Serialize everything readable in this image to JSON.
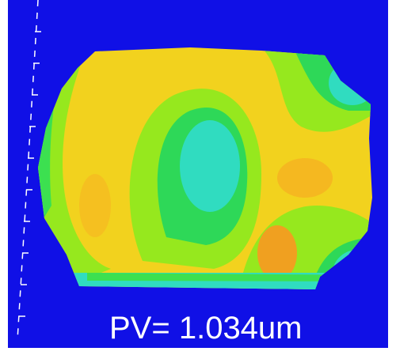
{
  "label": "PV= 1.034um"
}
